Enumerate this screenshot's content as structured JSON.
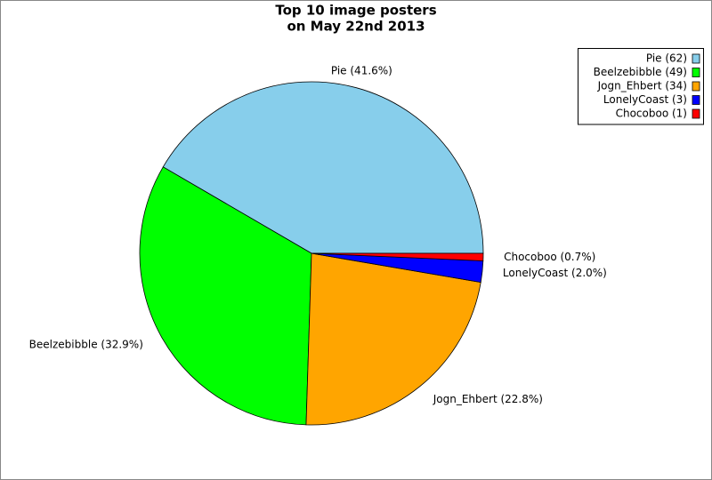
{
  "chart_data": {
    "type": "pie",
    "title": "Top 10 image posters",
    "subtitle": "on May 22nd 2013",
    "categories": [
      "Pie (62)",
      "Beelzebibble (49)",
      "Jogn_Ehbert (34)",
      "LonelyCoast (3)",
      "Chocoboo (1)"
    ],
    "values": [
      41.6,
      32.9,
      22.8,
      2.0,
      0.7
    ],
    "value_labels": [
      "Pie (41.6%)",
      "Beelzebibble (32.9%)",
      "Jogn_Ehbert (22.8%)",
      "LonelyCoast (2.0%)",
      "Chocoboo (0.7%)"
    ],
    "colors": [
      "#87ceeb",
      "#00ff00",
      "#ffa500",
      "#0000ff",
      "#ff0000"
    ],
    "legend": "upper right"
  }
}
